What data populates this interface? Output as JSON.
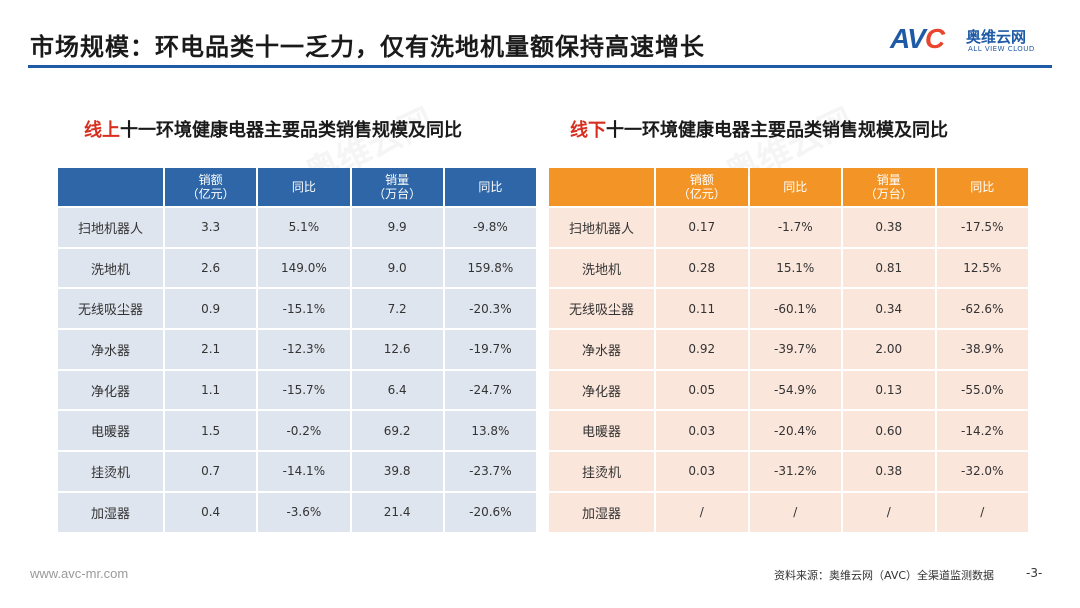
{
  "header": {
    "title": "市场规模：环电品类十一乏力，仅有洗地机量额保持高速增长",
    "logo_mark_a": "AV",
    "logo_mark_c": "C",
    "logo_cn": "奥维云网",
    "logo_en": "ALL VIEW CLOUD",
    "line_color": "#1f5aa6"
  },
  "online": {
    "title_highlight": "线上",
    "title_rest": "十一环境健康电器主要品类销售规模及同比",
    "header_color": "#2e66a7",
    "cell_color": "#dfe5ee",
    "columns": [
      "",
      "销额\n（亿元）",
      "同比",
      "销量\n（万台）",
      "同比"
    ],
    "rows": [
      [
        "扫地机器人",
        "3.3",
        "5.1%",
        "9.9",
        "-9.8%"
      ],
      [
        "洗地机",
        "2.6",
        "149.0%",
        "9.0",
        "159.8%"
      ],
      [
        "无线吸尘器",
        "0.9",
        "-15.1%",
        "7.2",
        "-20.3%"
      ],
      [
        "净水器",
        "2.1",
        "-12.3%",
        "12.6",
        "-19.7%"
      ],
      [
        "净化器",
        "1.1",
        "-15.7%",
        "6.4",
        "-24.7%"
      ],
      [
        "电暖器",
        "1.5",
        "-0.2%",
        "69.2",
        "13.8%"
      ],
      [
        "挂烫机",
        "0.7",
        "-14.1%",
        "39.8",
        "-23.7%"
      ],
      [
        "加湿器",
        "0.4",
        "-3.6%",
        "21.4",
        "-20.6%"
      ]
    ]
  },
  "offline": {
    "title_highlight": "线下",
    "title_rest": "十一环境健康电器主要品类销售规模及同比",
    "header_color": "#f39526",
    "cell_color": "#fbe6db",
    "columns": [
      "",
      "销额\n（亿元）",
      "同比",
      "销量\n（万台）",
      "同比"
    ],
    "rows": [
      [
        "扫地机器人",
        "0.17",
        "-1.7%",
        "0.38",
        "-17.5%"
      ],
      [
        "洗地机",
        "0.28",
        "15.1%",
        "0.81",
        "12.5%"
      ],
      [
        "无线吸尘器",
        "0.11",
        "-60.1%",
        "0.34",
        "-62.6%"
      ],
      [
        "净水器",
        "0.92",
        "-39.7%",
        "2.00",
        "-38.9%"
      ],
      [
        "净化器",
        "0.05",
        "-54.9%",
        "0.13",
        "-55.0%"
      ],
      [
        "电暖器",
        "0.03",
        "-20.4%",
        "0.60",
        "-14.2%"
      ],
      [
        "挂烫机",
        "0.03",
        "-31.2%",
        "0.38",
        "-32.0%"
      ],
      [
        "加湿器",
        "/",
        "/",
        "/",
        "/"
      ]
    ]
  },
  "watermark": "奥维云网",
  "footer": {
    "url": "www.avc-mr.com",
    "source": "资料来源：奥维云网（AVC）全渠道监测数据",
    "page": "-3-"
  }
}
